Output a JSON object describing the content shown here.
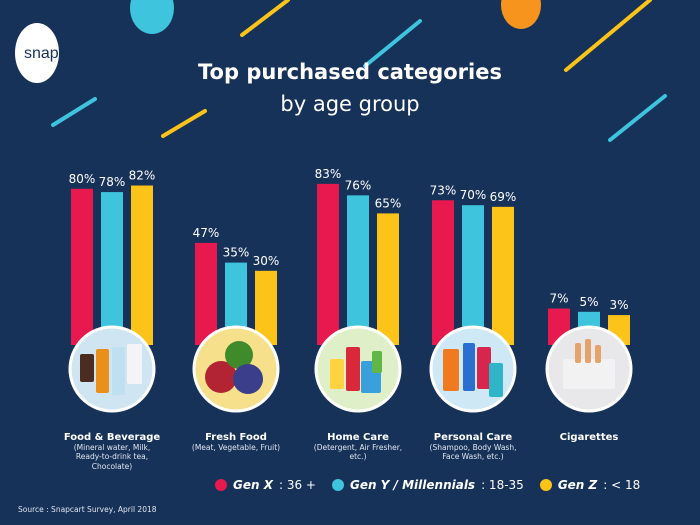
{
  "logo": "snapcart",
  "chart_data": {
    "type": "bar",
    "title": "Top purchased categories",
    "subtitle": "by age group",
    "categories": [
      {
        "name": "Food & Beverage",
        "detail": "(Mineral water, Milk, Ready-to-drink tea, Chocolate)"
      },
      {
        "name": "Fresh Food",
        "detail": "(Meat, Vegetable, Fruit)"
      },
      {
        "name": "Home Care",
        "detail": "(Detergent, Air Fresher, etc.)"
      },
      {
        "name": "Personal Care",
        "detail": "(Shampoo, Body Wash, Face Wash, etc.)"
      },
      {
        "name": "Cigarettes",
        "detail": ""
      }
    ],
    "series": [
      {
        "name": "Gen X",
        "range": ": 36 +",
        "color": "#e8194f",
        "values": [
          80,
          47,
          83,
          73,
          7
        ]
      },
      {
        "name": "Gen Y / Millennials",
        "range": ": 18-35",
        "color": "#3ec4dc",
        "values": [
          78,
          35,
          76,
          70,
          5
        ]
      },
      {
        "name": "Gen Z",
        "range": ": < 18",
        "color": "#fcc419",
        "values": [
          82,
          30,
          65,
          69,
          3
        ]
      }
    ],
    "unit": "%",
    "source": "Source : Snapcart Survey, April 2018"
  }
}
